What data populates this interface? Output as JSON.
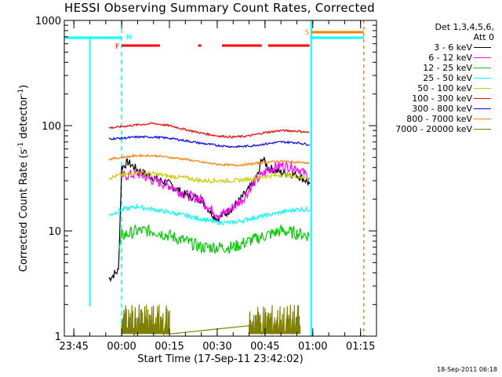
{
  "chart_data": {
    "type": "line",
    "title": "HESSI Observing Summary Count Rates, Corrected",
    "xlabel": "Start Time (17-Sep-11 23:42:02)",
    "ylabel": "Corrected Count Rate (s-1 detector-1)",
    "ylabel_main": "Corrected Count Rate (s",
    "ylabel_sup1": "-1",
    "ylabel_mid": " detector",
    "ylabel_sup2": "-1",
    "ylabel_end": ")",
    "yscale": "log",
    "ylim": [
      1,
      1000
    ],
    "yticks": [
      "1",
      "10",
      "100",
      "1000"
    ],
    "xlim_minutes": [
      -18,
      80
    ],
    "xticks": [
      {
        "label": "23:45",
        "min": -15
      },
      {
        "label": "00:00",
        "min": 0
      },
      {
        "label": "00:15",
        "min": 15
      },
      {
        "label": "00:30",
        "min": 30
      },
      {
        "label": "00:45",
        "min": 45
      },
      {
        "label": "01:00",
        "min": 60
      },
      {
        "label": "01:15",
        "min": 75
      }
    ],
    "legend_header": [
      "Det 1,3,4,5,6,",
      "Att 0"
    ],
    "series": [
      {
        "name": "3 - 6 keV",
        "color": "#000000",
        "points": [
          [
            -4,
            3.5
          ],
          [
            -1,
            4.2
          ],
          [
            0,
            40
          ],
          [
            2,
            45
          ],
          [
            5,
            38
          ],
          [
            10,
            32
          ],
          [
            15,
            28
          ],
          [
            20,
            22
          ],
          [
            25,
            20
          ],
          [
            28,
            15
          ],
          [
            30,
            13
          ],
          [
            33,
            15
          ],
          [
            36,
            18
          ],
          [
            40,
            25
          ],
          [
            43,
            35
          ],
          [
            44,
            50
          ],
          [
            46,
            40
          ],
          [
            50,
            36
          ],
          [
            55,
            34
          ],
          [
            58,
            30
          ],
          [
            59,
            28
          ]
        ]
      },
      {
        "name": "6 - 12 keV",
        "color": "#ff00ff",
        "points": [
          [
            0,
            33
          ],
          [
            5,
            35
          ],
          [
            10,
            30
          ],
          [
            15,
            27
          ],
          [
            20,
            22
          ],
          [
            25,
            20
          ],
          [
            28,
            16
          ],
          [
            31,
            14
          ],
          [
            34,
            16
          ],
          [
            38,
            20
          ],
          [
            42,
            30
          ],
          [
            46,
            38
          ],
          [
            50,
            42
          ],
          [
            55,
            40
          ],
          [
            59,
            32
          ]
        ]
      },
      {
        "name": "12 - 25 keV",
        "color": "#00cc00",
        "points": [
          [
            -1,
            6
          ],
          [
            0,
            9
          ],
          [
            5,
            10
          ],
          [
            10,
            10
          ],
          [
            15,
            9
          ],
          [
            20,
            8
          ],
          [
            25,
            7
          ],
          [
            30,
            7
          ],
          [
            35,
            7
          ],
          [
            40,
            8
          ],
          [
            45,
            9
          ],
          [
            50,
            10
          ],
          [
            55,
            9.5
          ],
          [
            59,
            9
          ]
        ]
      },
      {
        "name": "25 - 50 keV",
        "color": "#00ffff",
        "points": [
          [
            -4,
            14
          ],
          [
            0,
            16
          ],
          [
            5,
            17
          ],
          [
            10,
            16
          ],
          [
            15,
            15
          ],
          [
            20,
            14
          ],
          [
            25,
            13
          ],
          [
            30,
            12
          ],
          [
            35,
            12
          ],
          [
            40,
            13
          ],
          [
            45,
            14
          ],
          [
            50,
            15
          ],
          [
            55,
            16
          ],
          [
            59,
            16
          ]
        ]
      },
      {
        "name": "50 - 100 keV",
        "color": "#cccc00",
        "points": [
          [
            -4,
            32
          ],
          [
            0,
            34
          ],
          [
            5,
            36
          ],
          [
            10,
            35
          ],
          [
            15,
            33
          ],
          [
            20,
            32
          ],
          [
            25,
            30
          ],
          [
            30,
            30
          ],
          [
            35,
            30
          ],
          [
            40,
            31
          ],
          [
            45,
            33
          ],
          [
            50,
            34
          ],
          [
            55,
            33
          ],
          [
            59,
            32
          ]
        ]
      },
      {
        "name": "100 - 300 keV",
        "color": "#ff0000",
        "points": [
          [
            -4,
            95
          ],
          [
            0,
            98
          ],
          [
            5,
            102
          ],
          [
            10,
            105
          ],
          [
            15,
            100
          ],
          [
            20,
            92
          ],
          [
            25,
            85
          ],
          [
            30,
            80
          ],
          [
            35,
            78
          ],
          [
            40,
            80
          ],
          [
            45,
            86
          ],
          [
            50,
            90
          ],
          [
            55,
            89
          ],
          [
            59,
            86
          ]
        ]
      },
      {
        "name": "300 - 800 keV",
        "color": "#0000ff",
        "points": [
          [
            -4,
            75
          ],
          [
            0,
            76
          ],
          [
            5,
            78
          ],
          [
            10,
            78
          ],
          [
            15,
            76
          ],
          [
            20,
            72
          ],
          [
            25,
            68
          ],
          [
            30,
            65
          ],
          [
            35,
            63
          ],
          [
            40,
            64
          ],
          [
            45,
            67
          ],
          [
            50,
            70
          ],
          [
            55,
            69
          ],
          [
            59,
            66
          ]
        ]
      },
      {
        "name": "800 - 7000 keV",
        "color": "#ff8000",
        "points": [
          [
            -4,
            48
          ],
          [
            0,
            50
          ],
          [
            5,
            52
          ],
          [
            10,
            52
          ],
          [
            15,
            50
          ],
          [
            20,
            48
          ],
          [
            25,
            45
          ],
          [
            30,
            43
          ],
          [
            35,
            42
          ],
          [
            40,
            43
          ],
          [
            45,
            45
          ],
          [
            50,
            46
          ],
          [
            55,
            45
          ],
          [
            59,
            44
          ]
        ]
      },
      {
        "name": "7000 - 20000 keV",
        "color": "#808000",
        "points": [
          [
            0,
            1.3
          ],
          [
            5,
            1.5
          ],
          [
            10,
            1.3
          ],
          [
            15,
            1.4
          ],
          [
            40,
            1.3
          ],
          [
            45,
            1.5
          ],
          [
            50,
            1.4
          ],
          [
            56,
            1.3
          ]
        ]
      }
    ],
    "flags": [
      {
        "label": "N",
        "color": "#00ffff"
      },
      {
        "label": "F",
        "color": "#ff0000"
      },
      {
        "label": "S",
        "color": "#ff8000"
      }
    ]
  },
  "footer_date": "18-Sep-2011 06:18"
}
